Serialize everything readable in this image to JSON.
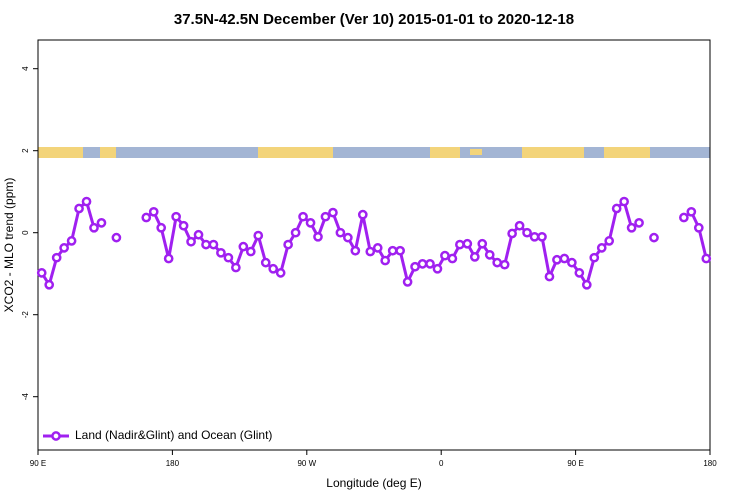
{
  "chart_data": {
    "type": "line",
    "title": "37.5N-42.5N December (Ver 10)   2015-01-01 to 2020-12-18",
    "x_label": "Longitude (deg E)",
    "y_label": "XCO2 - MLO trend (ppm)",
    "xlim": [
      90,
      540
    ],
    "xticks": [
      {
        "value": 90,
        "label": "90 E"
      },
      180,
      {
        "value": 270,
        "label": "90 W"
      },
      {
        "value": 360,
        "label": "0"
      },
      {
        "value": 450,
        "label": "90 E"
      },
      {
        "value": 540,
        "label": "180"
      }
    ],
    "ylim": [
      -5.3,
      4.7
    ],
    "yticks": [
      -4,
      -2,
      0,
      2,
      4
    ],
    "legend": "bottomleft",
    "x": [
      92.5,
      97.5,
      102.5,
      107.5,
      112.5,
      117.5,
      122.5,
      127.5,
      132.5,
      137.5,
      142.5,
      147.5,
      152.5,
      157.5,
      162.5,
      167.5,
      172.5,
      177.5,
      182.5,
      187.5,
      192.5,
      197.5,
      202.5,
      207.5,
      212.5,
      217.5,
      222.5,
      227.5,
      232.5,
      237.5,
      242.5,
      247.5,
      252.5,
      257.5,
      262.5,
      267.5,
      272.5,
      277.5,
      282.5,
      287.5,
      292.5,
      297.5,
      302.5,
      307.5,
      312.5,
      317.5,
      322.5,
      327.5,
      332.5,
      337.5,
      342.5,
      347.5,
      352.5,
      357.5,
      362.5,
      367.5,
      372.5,
      377.5,
      382.5,
      387.5,
      392.5,
      397.5,
      402.5,
      407.5,
      412.5,
      417.5,
      422.5,
      427.5,
      432.5,
      437.5,
      442.5,
      447.5,
      452.5,
      457.5,
      462.5,
      467.5,
      472.5,
      477.5,
      482.5,
      487.5,
      492.5,
      497.5,
      502.5,
      507.5,
      512.5,
      517.5,
      522.5,
      527.5,
      532.5,
      537.5
    ],
    "series": [
      {
        "name": "Land (Nadir&Glint) and Ocean (Glint)",
        "color": "#a020f0",
        "values": [
          -0.98,
          -1.27,
          -0.61,
          -0.37,
          -0.2,
          0.59,
          0.76,
          0.12,
          0.24,
          null,
          -0.12,
          null,
          null,
          null,
          0.37,
          0.51,
          0.12,
          -0.63,
          0.39,
          0.17,
          -0.22,
          -0.05,
          -0.29,
          -0.29,
          -0.49,
          -0.61,
          -0.85,
          -0.34,
          -0.46,
          -0.07,
          -0.73,
          -0.88,
          -0.98,
          -0.29,
          0,
          0.39,
          0.24,
          -0.1,
          0.39,
          0.49,
          0,
          -0.12,
          -0.44,
          0.44,
          -0.46,
          -0.37,
          -0.68,
          -0.44,
          -0.44,
          -1.2,
          -0.83,
          -0.76,
          -0.76,
          -0.88,
          -0.56,
          -0.63,
          -0.29,
          -0.27,
          -0.59,
          -0.27,
          -0.54,
          -0.73,
          -0.78,
          -0.02,
          0.17,
          0,
          -0.1,
          -0.1,
          -1.07,
          -0.66,
          -0.63,
          -0.73,
          -0.98,
          -1.27,
          -0.61,
          -0.37,
          -0.2,
          0.59,
          0.76,
          0.12,
          0.24,
          null,
          -0.12,
          null,
          null,
          null,
          0.37,
          0.51,
          0.12,
          -0.63
        ]
      }
    ]
  }
}
